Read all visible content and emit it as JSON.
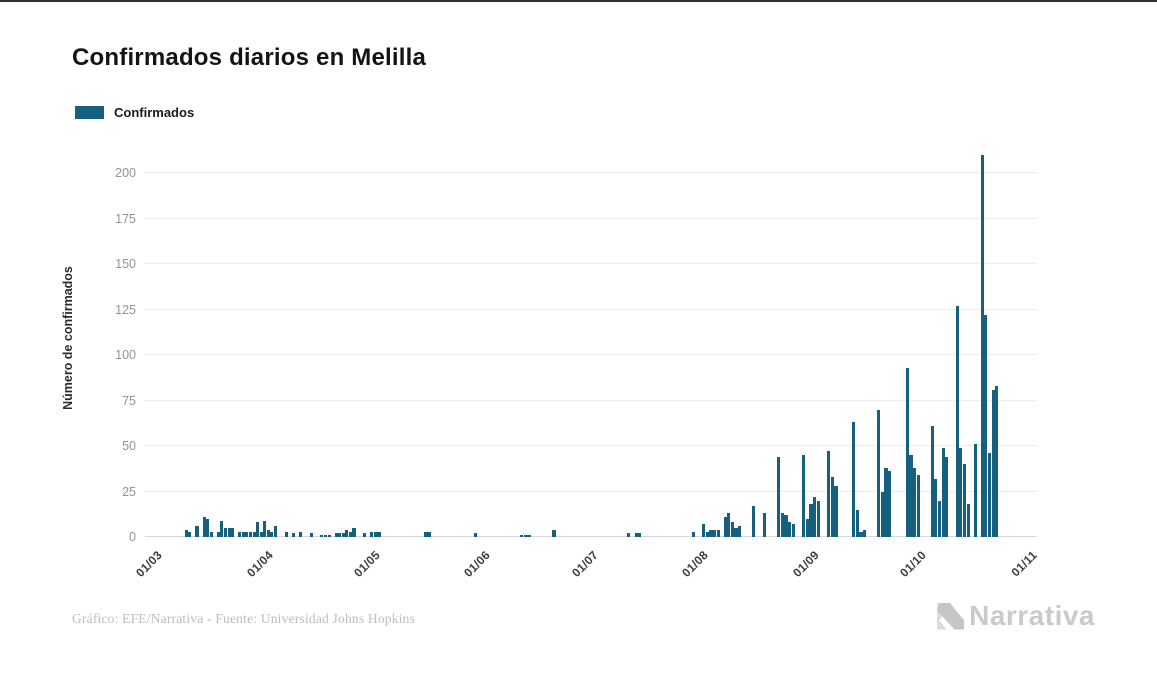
{
  "header": {
    "title": "Confirmados diarios en Melilla"
  },
  "legend": {
    "label": "Confirmados",
    "swatch_color": "#15607e"
  },
  "footer": {
    "credit": "Gráfico: EFE/Narrativa - Fuente: Universidad Johns Hopkins",
    "brand": "Narrativa"
  },
  "chart_data": {
    "type": "bar",
    "title": "Confirmados diarios en Melilla",
    "series_name": "Confirmados",
    "xlabel": "",
    "ylabel": "Número de confirmados",
    "ylim": [
      0,
      210
    ],
    "yticks": [
      0,
      25,
      50,
      75,
      100,
      125,
      150,
      175,
      200
    ],
    "xticks": [
      "01/03",
      "01/04",
      "01/05",
      "01/06",
      "01/07",
      "01/08",
      "01/09",
      "01/10",
      "01/11"
    ],
    "grid": true,
    "legend_position": "top-left",
    "bar_color": "#15607e",
    "date_format": "DD/MM",
    "points": [
      [
        "11/03",
        4
      ],
      [
        "12/03",
        3
      ],
      [
        "14/03",
        6
      ],
      [
        "16/03",
        11
      ],
      [
        "17/03",
        10
      ],
      [
        "18/03",
        3
      ],
      [
        "20/03",
        3
      ],
      [
        "21/03",
        9
      ],
      [
        "22/03",
        5
      ],
      [
        "23/03",
        5
      ],
      [
        "24/03",
        5
      ],
      [
        "26/03",
        3
      ],
      [
        "27/03",
        3
      ],
      [
        "28/03",
        3
      ],
      [
        "29/03",
        3
      ],
      [
        "30/03",
        3
      ],
      [
        "31/03",
        8
      ],
      [
        "01/04",
        3
      ],
      [
        "02/04",
        9
      ],
      [
        "03/04",
        4
      ],
      [
        "04/04",
        3
      ],
      [
        "05/04",
        6
      ],
      [
        "08/04",
        3
      ],
      [
        "10/04",
        2
      ],
      [
        "12/04",
        3
      ],
      [
        "15/04",
        2
      ],
      [
        "18/04",
        1
      ],
      [
        "19/04",
        1
      ],
      [
        "20/04",
        1
      ],
      [
        "22/04",
        2
      ],
      [
        "23/04",
        2
      ],
      [
        "24/04",
        2
      ],
      [
        "25/04",
        4
      ],
      [
        "26/04",
        3
      ],
      [
        "27/04",
        5
      ],
      [
        "30/04",
        2
      ],
      [
        "02/05",
        3
      ],
      [
        "03/05",
        3
      ],
      [
        "04/05",
        3
      ],
      [
        "17/05",
        3
      ],
      [
        "18/05",
        3
      ],
      [
        "31/05",
        2
      ],
      [
        "13/06",
        1
      ],
      [
        "14/06",
        1
      ],
      [
        "15/06",
        1
      ],
      [
        "22/06",
        4
      ],
      [
        "13/07",
        2
      ],
      [
        "15/07",
        2
      ],
      [
        "16/07",
        2
      ],
      [
        "31/07",
        3
      ],
      [
        "03/08",
        7
      ],
      [
        "04/08",
        3
      ],
      [
        "05/08",
        4
      ],
      [
        "06/08",
        4
      ],
      [
        "07/08",
        4
      ],
      [
        "09/08",
        11
      ],
      [
        "10/08",
        13
      ],
      [
        "11/08",
        8
      ],
      [
        "12/08",
        5
      ],
      [
        "13/08",
        6
      ],
      [
        "17/08",
        17
      ],
      [
        "20/08",
        13
      ],
      [
        "24/08",
        44
      ],
      [
        "25/08",
        13
      ],
      [
        "26/08",
        12
      ],
      [
        "27/08",
        8
      ],
      [
        "28/08",
        7
      ],
      [
        "31/08",
        45
      ],
      [
        "01/09",
        10
      ],
      [
        "02/09",
        18
      ],
      [
        "03/09",
        22
      ],
      [
        "04/09",
        20
      ],
      [
        "07/09",
        47
      ],
      [
        "08/09",
        33
      ],
      [
        "09/09",
        28
      ],
      [
        "14/09",
        63
      ],
      [
        "15/09",
        15
      ],
      [
        "16/09",
        3
      ],
      [
        "17/09",
        4
      ],
      [
        "21/09",
        70
      ],
      [
        "22/09",
        25
      ],
      [
        "23/09",
        38
      ],
      [
        "24/09",
        36
      ],
      [
        "29/09",
        93
      ],
      [
        "30/09",
        45
      ],
      [
        "01/10",
        38
      ],
      [
        "02/10",
        34
      ],
      [
        "06/10",
        61
      ],
      [
        "07/10",
        32
      ],
      [
        "08/10",
        20
      ],
      [
        "09/10",
        49
      ],
      [
        "10/10",
        44
      ],
      [
        "13/10",
        127
      ],
      [
        "14/10",
        49
      ],
      [
        "15/10",
        40
      ],
      [
        "16/10",
        18
      ],
      [
        "18/10",
        51
      ],
      [
        "20/10",
        210
      ],
      [
        "21/10",
        122
      ],
      [
        "22/10",
        46
      ],
      [
        "23/10",
        81
      ],
      [
        "24/10",
        83
      ]
    ]
  }
}
